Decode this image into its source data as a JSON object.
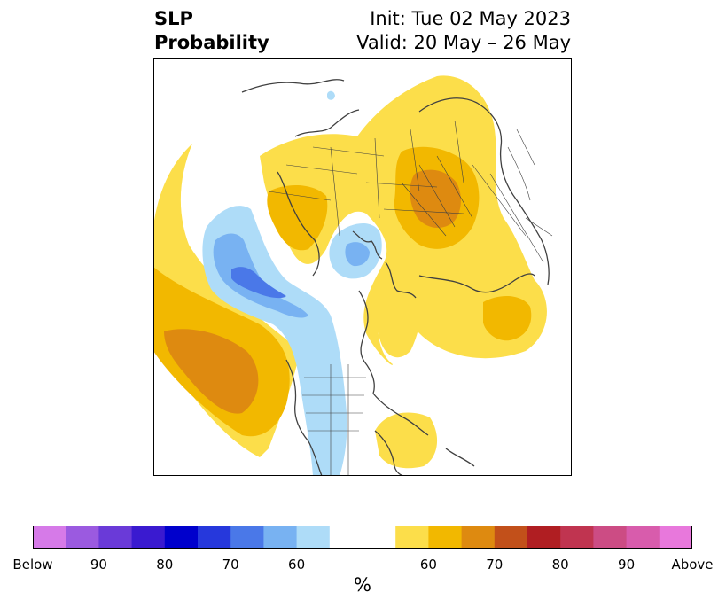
{
  "title": {
    "left_line1": "SLP",
    "left_line2": "Probability",
    "right_line1": "Init: Tue 02 May 2023",
    "right_line2": "Valid: 20 May – 26 May"
  },
  "colorbar": {
    "colors": [
      "#d67ae8",
      "#9b5ae0",
      "#6a3ad8",
      "#3a1ad0",
      "#0000cc",
      "#2638dc",
      "#4a78e8",
      "#78b2f2",
      "#aedcf8",
      "#ffffff",
      "#ffffff",
      "#fcde4a",
      "#f2b800",
      "#de8a10",
      "#c2501a",
      "#b01e22",
      "#c03450",
      "#cc4c84",
      "#d85cac",
      "#e878dc"
    ],
    "tick_labels": [
      "Below",
      "90",
      "80",
      "70",
      "60",
      "60",
      "70",
      "80",
      "90",
      "Above"
    ],
    "unit": "%"
  },
  "map": {
    "categories": [
      "below-60",
      "below-70",
      "below-80",
      "above-60",
      "above-70",
      "above-80"
    ],
    "colors": {
      "below-60": "#aedcf8",
      "below-70": "#78b2f2",
      "below-80": "#4a78e8",
      "above-60": "#fcde4a",
      "above-70": "#f2b800",
      "above-80": "#de8a10",
      "above-90": "#c2501a",
      "coast": "#404040",
      "border": "#404040"
    }
  }
}
